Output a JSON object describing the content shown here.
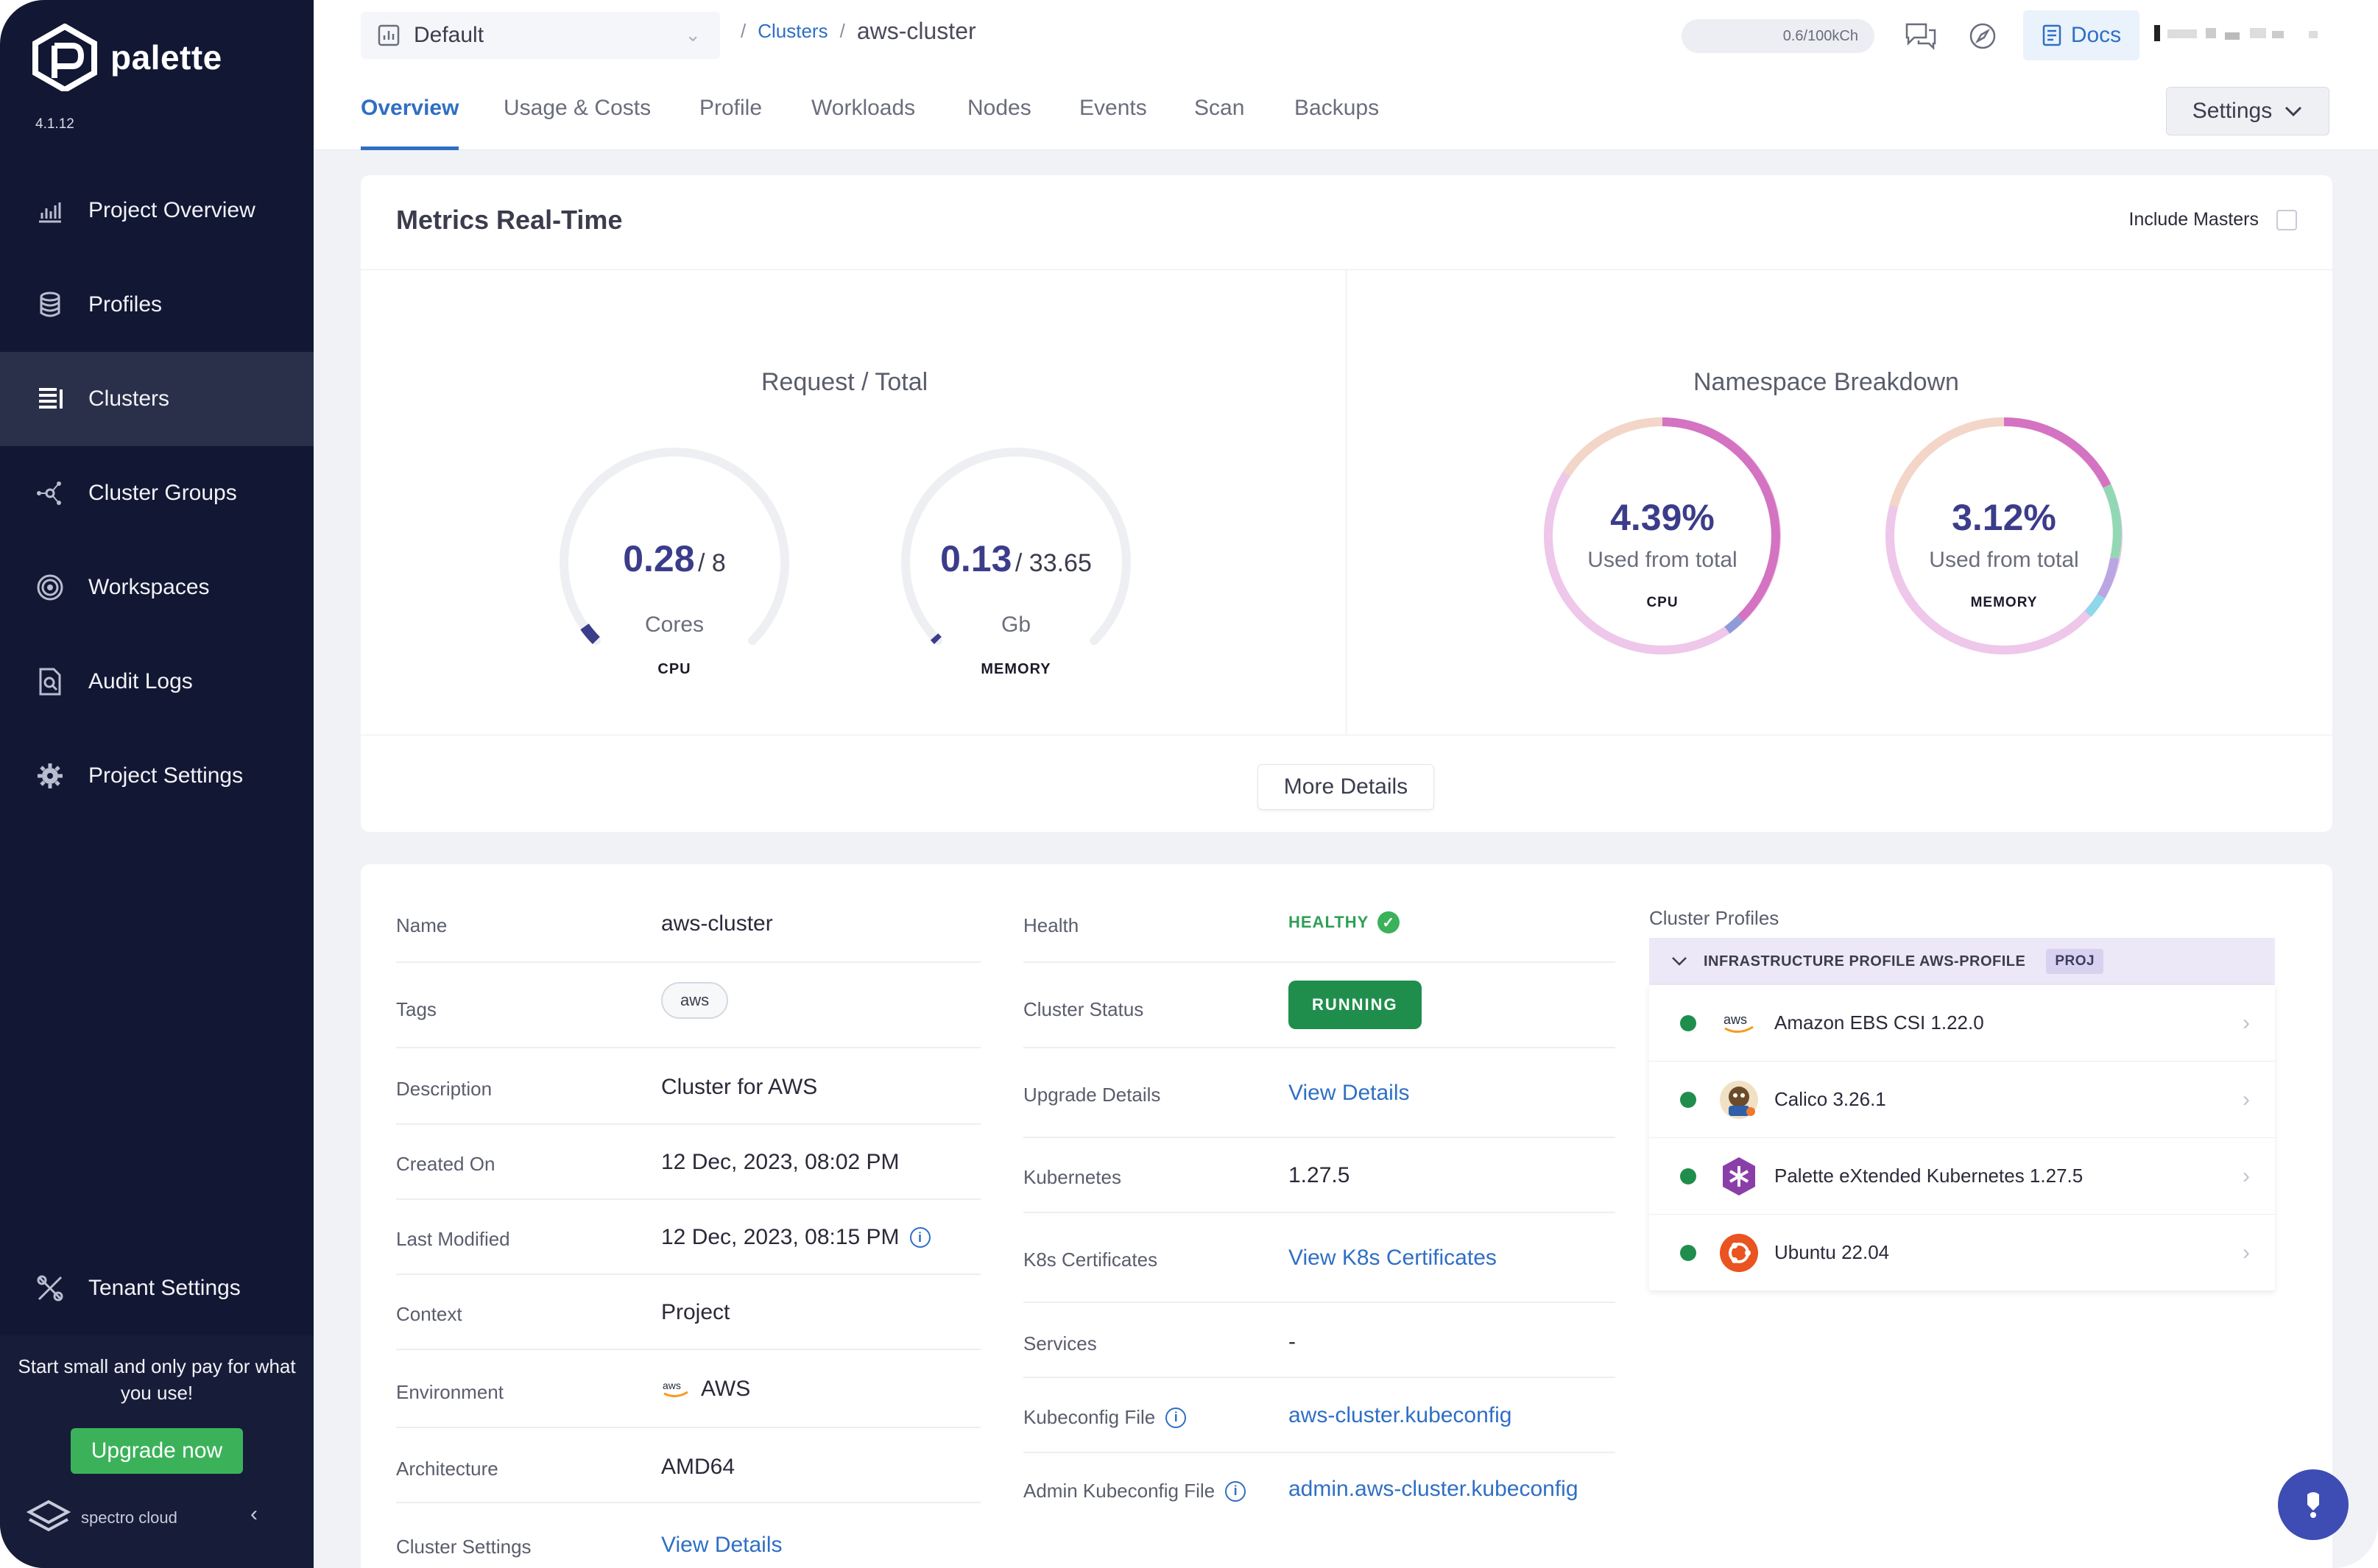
{
  "sidebar": {
    "brand": "palette",
    "version": "4.1.12",
    "items": [
      {
        "label": "Project Overview",
        "icon": "chart-icon"
      },
      {
        "label": "Profiles",
        "icon": "layers-icon"
      },
      {
        "label": "Clusters",
        "icon": "clusters-icon",
        "active": true
      },
      {
        "label": "Cluster Groups",
        "icon": "cluster-groups-icon"
      },
      {
        "label": "Workspaces",
        "icon": "workspaces-icon"
      },
      {
        "label": "Audit Logs",
        "icon": "audit-icon"
      },
      {
        "label": "Project Settings",
        "icon": "gear-icon"
      }
    ],
    "tenant_settings": "Tenant Settings",
    "promo_text": "Start small and only pay for what you use!",
    "upgrade_label": "Upgrade now",
    "spectro_label": "spectro cloud"
  },
  "topbar": {
    "project": "Default",
    "breadcrumb_parent": "Clusters",
    "breadcrumb_current": "aws-cluster",
    "usage": "0.6/100kCh",
    "docs_label": "Docs"
  },
  "tabs": [
    {
      "label": "Overview",
      "active": true
    },
    {
      "label": "Usage & Costs"
    },
    {
      "label": "Profile"
    },
    {
      "label": "Workloads"
    },
    {
      "label": "Nodes"
    },
    {
      "label": "Events"
    },
    {
      "label": "Scan"
    },
    {
      "label": "Backups"
    }
  ],
  "settings_label": "Settings",
  "metrics": {
    "title": "Metrics Real-Time",
    "include_masters": "Include Masters",
    "request_title": "Request / Total",
    "cpu": {
      "used": "0.28",
      "total": "/ 8",
      "unit": "Cores",
      "label": "CPU",
      "fraction": 0.035
    },
    "memory": {
      "used": "0.13",
      "total": "/ 33.65",
      "unit": "Gb",
      "label": "MEMORY",
      "fraction": 0.004
    },
    "namespace_title": "Namespace Breakdown",
    "ns_cpu": {
      "pct": "4.39%",
      "sub": "Used from total",
      "label": "CPU"
    },
    "ns_memory": {
      "pct": "3.12%",
      "sub": "Used from total",
      "label": "MEMORY"
    },
    "more_details": "More Details"
  },
  "details": {
    "left": [
      {
        "label": "Name",
        "value": "aws-cluster"
      },
      {
        "label": "Tags",
        "value": "aws"
      },
      {
        "label": "Description",
        "value": "Cluster for AWS"
      },
      {
        "label": "Created On",
        "value": "12 Dec, 2023, 08:02 PM"
      },
      {
        "label": "Last Modified",
        "value": "12 Dec, 2023, 08:15 PM"
      },
      {
        "label": "Context",
        "value": "Project"
      },
      {
        "label": "Environment",
        "value": "AWS"
      },
      {
        "label": "Architecture",
        "value": "AMD64"
      },
      {
        "label": "Cluster Settings",
        "value": "View Details"
      }
    ],
    "right": [
      {
        "label": "Health",
        "value": "HEALTHY"
      },
      {
        "label": "Cluster Status",
        "value": "RUNNING"
      },
      {
        "label": "Upgrade Details",
        "value": "View Details"
      },
      {
        "label": "Kubernetes",
        "value": "1.27.5"
      },
      {
        "label": "K8s Certificates",
        "value": "View K8s Certificates"
      },
      {
        "label": "Services",
        "value": "-"
      },
      {
        "label": "Kubeconfig File",
        "value": "aws-cluster.kubeconfig"
      },
      {
        "label": "Admin Kubeconfig File",
        "value": "admin.aws-cluster.kubeconfig"
      }
    ]
  },
  "profiles": {
    "title": "Cluster Profiles",
    "header": "INFRASTRUCTURE PROFILE AWS-PROFILE",
    "badge": "PROJ",
    "items": [
      {
        "name": "Amazon EBS CSI 1.22.0",
        "logo": "aws-logo"
      },
      {
        "name": "Calico 3.26.1",
        "logo": "calico-logo"
      },
      {
        "name": "Palette eXtended Kubernetes 1.27.5",
        "logo": "kubernetes-logo"
      },
      {
        "name": "Ubuntu 22.04",
        "logo": "ubuntu-logo"
      }
    ]
  },
  "colors": {
    "accent": "#2f6fc4",
    "sidebar": "#121733",
    "healthy": "#3bb25a",
    "gauge": "#3b3d8a"
  }
}
